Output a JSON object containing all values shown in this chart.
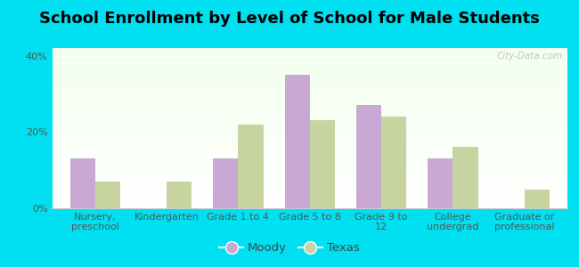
{
  "title": "School Enrollment by Level of School for Male Students",
  "categories": [
    "Nursery,\npreschool",
    "Kindergarten",
    "Grade 1 to 4",
    "Grade 5 to 8",
    "Grade 9 to\n12",
    "College\nundergrad",
    "Graduate or\nprofessional"
  ],
  "moody_values": [
    13.0,
    0.0,
    13.0,
    35.0,
    27.0,
    13.0,
    0.0
  ],
  "texas_values": [
    7.0,
    7.0,
    22.0,
    23.0,
    24.0,
    16.0,
    5.0
  ],
  "moody_color": "#c9a8d4",
  "texas_color": "#c8d4a0",
  "background_outer": "#00e0f0",
  "yticks": [
    0,
    20,
    40
  ],
  "ylim": [
    0,
    42
  ],
  "legend_labels": [
    "Moody",
    "Texas"
  ],
  "title_fontsize": 13,
  "tick_fontsize": 8,
  "legend_fontsize": 9.5,
  "bar_width": 0.35,
  "watermark_text": "City-Data.com"
}
